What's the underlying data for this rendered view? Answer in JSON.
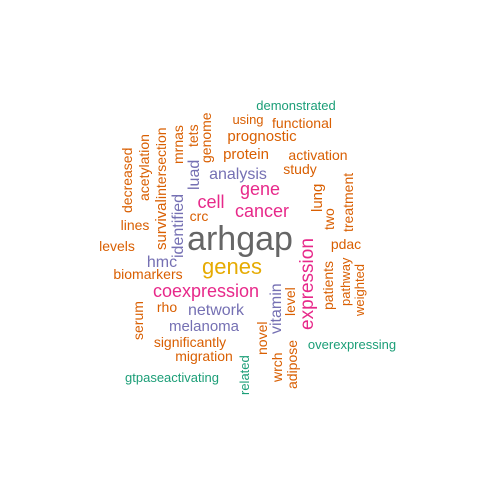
{
  "colors": {
    "orange": "#D95F02",
    "green": "#1B9E77",
    "purple": "#7570B3",
    "magenta": "#E7298A",
    "gold": "#E6AB02",
    "gray": "#666666"
  },
  "words": [
    {
      "text": "arhgap",
      "color": "gray"
    },
    {
      "text": "genes",
      "color": "gold"
    },
    {
      "text": "expression",
      "color": "magenta"
    },
    {
      "text": "coexpression",
      "color": "magenta"
    },
    {
      "text": "cancer",
      "color": "magenta"
    },
    {
      "text": "cell",
      "color": "magenta"
    },
    {
      "text": "gene",
      "color": "magenta"
    },
    {
      "text": "network",
      "color": "purple"
    },
    {
      "text": "melanoma",
      "color": "purple"
    },
    {
      "text": "analysis",
      "color": "purple"
    },
    {
      "text": "identified",
      "color": "purple"
    },
    {
      "text": "vitamin",
      "color": "purple"
    },
    {
      "text": "hmc",
      "color": "purple"
    },
    {
      "text": "luad",
      "color": "purple"
    },
    {
      "text": "demonstrated",
      "color": "green"
    },
    {
      "text": "overexpressing",
      "color": "green"
    },
    {
      "text": "gtpaseactivating",
      "color": "green"
    },
    {
      "text": "related",
      "color": "green"
    },
    {
      "text": "using",
      "color": "orange"
    },
    {
      "text": "functional",
      "color": "orange"
    },
    {
      "text": "prognostic",
      "color": "orange"
    },
    {
      "text": "protein",
      "color": "orange"
    },
    {
      "text": "activation",
      "color": "orange"
    },
    {
      "text": "study",
      "color": "orange"
    },
    {
      "text": "treatment",
      "color": "orange"
    },
    {
      "text": "lung",
      "color": "orange"
    },
    {
      "text": "two",
      "color": "orange"
    },
    {
      "text": "pdac",
      "color": "orange"
    },
    {
      "text": "patients",
      "color": "orange"
    },
    {
      "text": "pathway",
      "color": "orange"
    },
    {
      "text": "weighted",
      "color": "orange"
    },
    {
      "text": "level",
      "color": "orange"
    },
    {
      "text": "novel",
      "color": "orange"
    },
    {
      "text": "wrch",
      "color": "orange"
    },
    {
      "text": "adipose",
      "color": "orange"
    },
    {
      "text": "migration",
      "color": "orange"
    },
    {
      "text": "significantly",
      "color": "orange"
    },
    {
      "text": "serum",
      "color": "orange"
    },
    {
      "text": "rho",
      "color": "orange"
    },
    {
      "text": "biomarkers",
      "color": "orange"
    },
    {
      "text": "levels",
      "color": "orange"
    },
    {
      "text": "lines",
      "color": "orange"
    },
    {
      "text": "crc",
      "color": "orange"
    },
    {
      "text": "survival",
      "color": "orange"
    },
    {
      "text": "intersection",
      "color": "orange"
    },
    {
      "text": "acetylation",
      "color": "orange"
    },
    {
      "text": "decreased",
      "color": "orange"
    },
    {
      "text": "mrnas",
      "color": "orange"
    },
    {
      "text": "tets",
      "color": "orange"
    },
    {
      "text": "genome",
      "color": "orange"
    }
  ]
}
